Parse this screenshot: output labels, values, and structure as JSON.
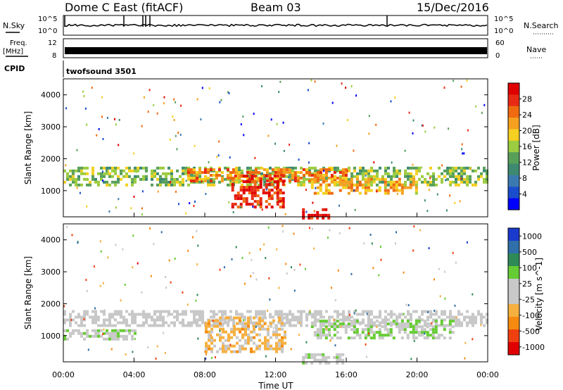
{
  "header": {
    "title": "Dome C East (fitACF)",
    "beam": "Beam 03",
    "date": "15/Dec/2016"
  },
  "panels": {
    "nsky": {
      "label": "N.Sky",
      "ticks": [
        "10^5",
        "10^0"
      ],
      "right_label": "N.Search",
      "right_ticks": [
        "10^5",
        "10^0"
      ]
    },
    "freq": {
      "label_line1": "Freq.",
      "label_line2": "[MHz]",
      "ticks": [
        "12",
        "8"
      ],
      "right_label": "Nave",
      "right_ticks": [
        "60",
        "0"
      ]
    },
    "cpid": {
      "label": "CPID",
      "value": "twofsound 3501"
    }
  },
  "chart_data": [
    {
      "type": "heatmap",
      "title": "",
      "xlabel": "Time UT",
      "ylabel": "Slant Range [km]",
      "x_ticks": [
        "00:00",
        "04:00",
        "08:00",
        "12:00",
        "16:00",
        "20:00",
        "00:00"
      ],
      "y_ticks": [
        "1000",
        "2000",
        "3000",
        "4000"
      ],
      "xlim": [
        0,
        24
      ],
      "ylim": [
        180,
        4500
      ],
      "colorbar": {
        "label": "Power [dB]",
        "ticks": [
          "4",
          "8",
          "12",
          "16",
          "20",
          "24",
          "28"
        ],
        "range": [
          0,
          30
        ],
        "colors": [
          "#0000ff",
          "#1a4dcc",
          "#3a7ab0",
          "#3d8a70",
          "#58a05a",
          "#9ccc3f",
          "#f5d020",
          "#f6a020",
          "#f06a10",
          "#e82a14",
          "#e00000"
        ]
      },
      "features": [
        {
          "x": [
            0.0,
            24.0
          ],
          "y": [
            1150,
            1750
          ],
          "level": 14
        },
        {
          "x": [
            7.0,
            16.0
          ],
          "y": [
            1300,
            1700
          ],
          "level": 22
        },
        {
          "x": [
            9.5,
            12.5
          ],
          "y": [
            500,
            1500
          ],
          "level": 26
        },
        {
          "x": [
            13.5,
            15.0
          ],
          "y": [
            180,
            450
          ],
          "level": 28
        },
        {
          "x": [
            14.0,
            20.0
          ],
          "y": [
            900,
            1400
          ],
          "level": 20
        }
      ]
    },
    {
      "type": "heatmap",
      "title": "",
      "xlabel": "Time UT",
      "ylabel": "Slant Range [km]",
      "x_ticks": [
        "00:00",
        "04:00",
        "08:00",
        "12:00",
        "16:00",
        "20:00",
        "00:00"
      ],
      "y_ticks": [
        "1000",
        "2000",
        "3000",
        "4000"
      ],
      "xlim": [
        0,
        24
      ],
      "ylim": [
        180,
        4500
      ],
      "colorbar": {
        "label": "Velocity [m s^-1]",
        "ticks": [
          "1000",
          "500",
          "100",
          "25",
          "-25",
          "-100",
          "-500",
          "-1000"
        ],
        "range": [
          -1200,
          1200
        ],
        "colors": [
          "#e00000",
          "#f04010",
          "#f68a10",
          "#f6b040",
          "#c8c8c8",
          "#c8c8c8",
          "#66cc33",
          "#2e8b57",
          "#2f6faa",
          "#1a3acc"
        ]
      },
      "features": [
        {
          "x": [
            0.0,
            24.0
          ],
          "y": [
            1300,
            1800
          ],
          "level": 0
        },
        {
          "x": [
            8.0,
            12.5
          ],
          "y": [
            500,
            1600
          ],
          "level": -300
        },
        {
          "x": [
            0.0,
            4.0
          ],
          "y": [
            900,
            1200
          ],
          "level": 150
        },
        {
          "x": [
            13.5,
            16.0
          ],
          "y": [
            180,
            450
          ],
          "level": 60
        },
        {
          "x": [
            14.0,
            22.0
          ],
          "y": [
            900,
            1500
          ],
          "level": 200
        }
      ]
    }
  ]
}
